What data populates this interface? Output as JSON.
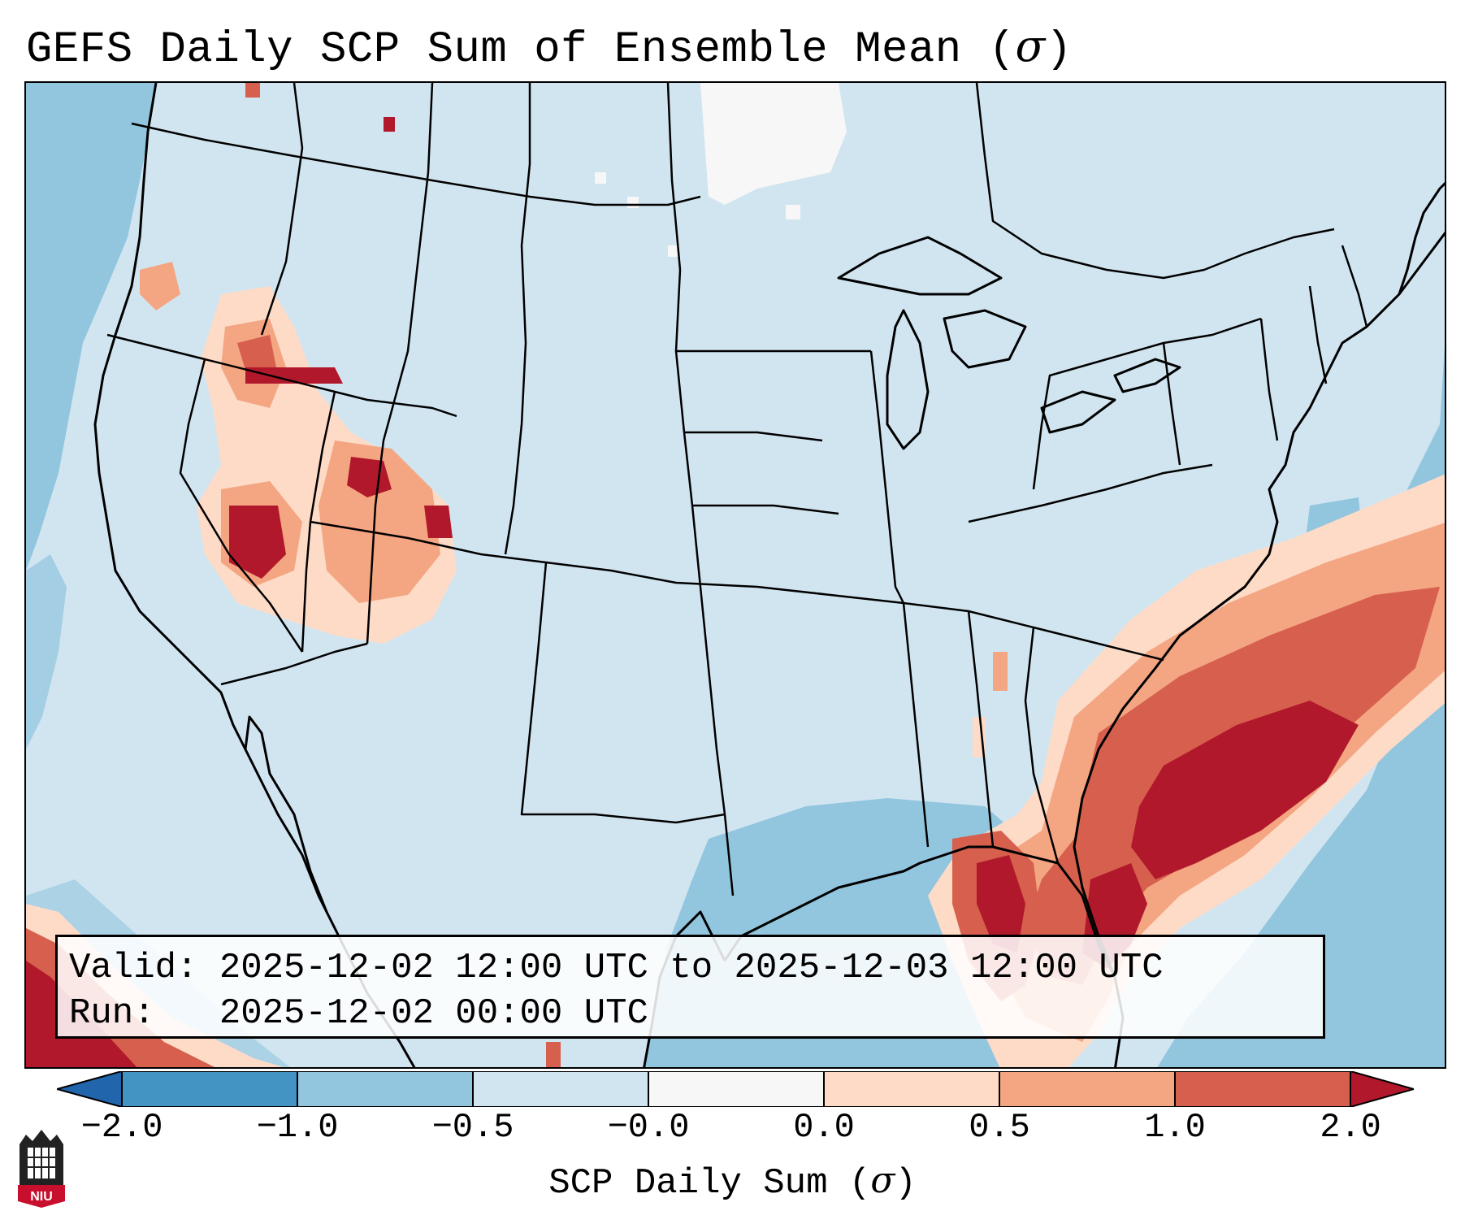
{
  "title": {
    "text": "GEFS Daily SCP Sum of Ensemble Mean (",
    "symbol": "σ",
    "close": ")"
  },
  "info": {
    "valid_label": "Valid:",
    "valid_value": "2025-12-02 12:00 UTC to 2025-12-03 12:00 UTC",
    "run_label": "Run:",
    "run_value": "2025-12-02 00:00 UTC"
  },
  "colorbar": {
    "label_text": "SCP Daily Sum (",
    "label_symbol": "σ",
    "label_close": ")",
    "ticks": [
      "−2.0",
      "−1.0",
      "−0.5",
      "−0.0",
      "0.0",
      "0.5",
      "1.0",
      "2.0"
    ],
    "colors": [
      "#4393c3",
      "#92c5de",
      "#d1e5f0",
      "#f7f7f7",
      "#fddbc7",
      "#f4a582",
      "#d6604d",
      "#b2182b"
    ],
    "extend_low_color": "#2166ac",
    "extend_high_color": "#b2182b"
  },
  "legend_colors": {
    "background_negative": "#d1e5f0",
    "ocean_negative": "#92c5de",
    "neutral": "#f7f7f7",
    "light_positive": "#fddbc7",
    "medium_positive": "#f4a582",
    "strong_positive": "#d6604d",
    "max_positive": "#b2182b"
  },
  "logo": {
    "name": "niu-logo-icon",
    "text": "NIU",
    "color": "#c8102e"
  }
}
